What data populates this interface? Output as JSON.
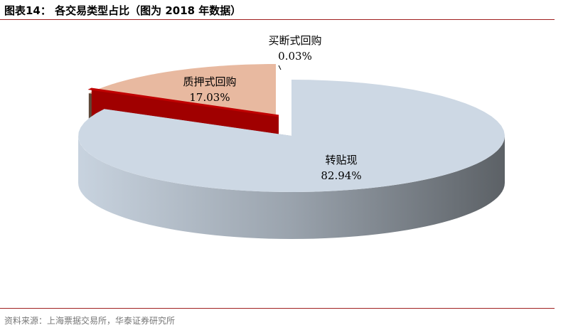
{
  "title": "图表14： 各交易类型占比（图为 2018 年数据）",
  "source": "资料来源：上海票据交易所，华泰证券研究所",
  "chart_data": {
    "type": "pie",
    "style": "3d-exploded",
    "slices": [
      {
        "name": "转贴现",
        "value": 82.94,
        "label": "82.94%",
        "color": "#cdd8e4"
      },
      {
        "name": "买断式回购",
        "value": 0.03,
        "label": "0.03%",
        "color": "#c00000"
      },
      {
        "name": "质押式回购",
        "value": 17.03,
        "label": "17.03%",
        "color": "#e8b9a0"
      }
    ]
  }
}
